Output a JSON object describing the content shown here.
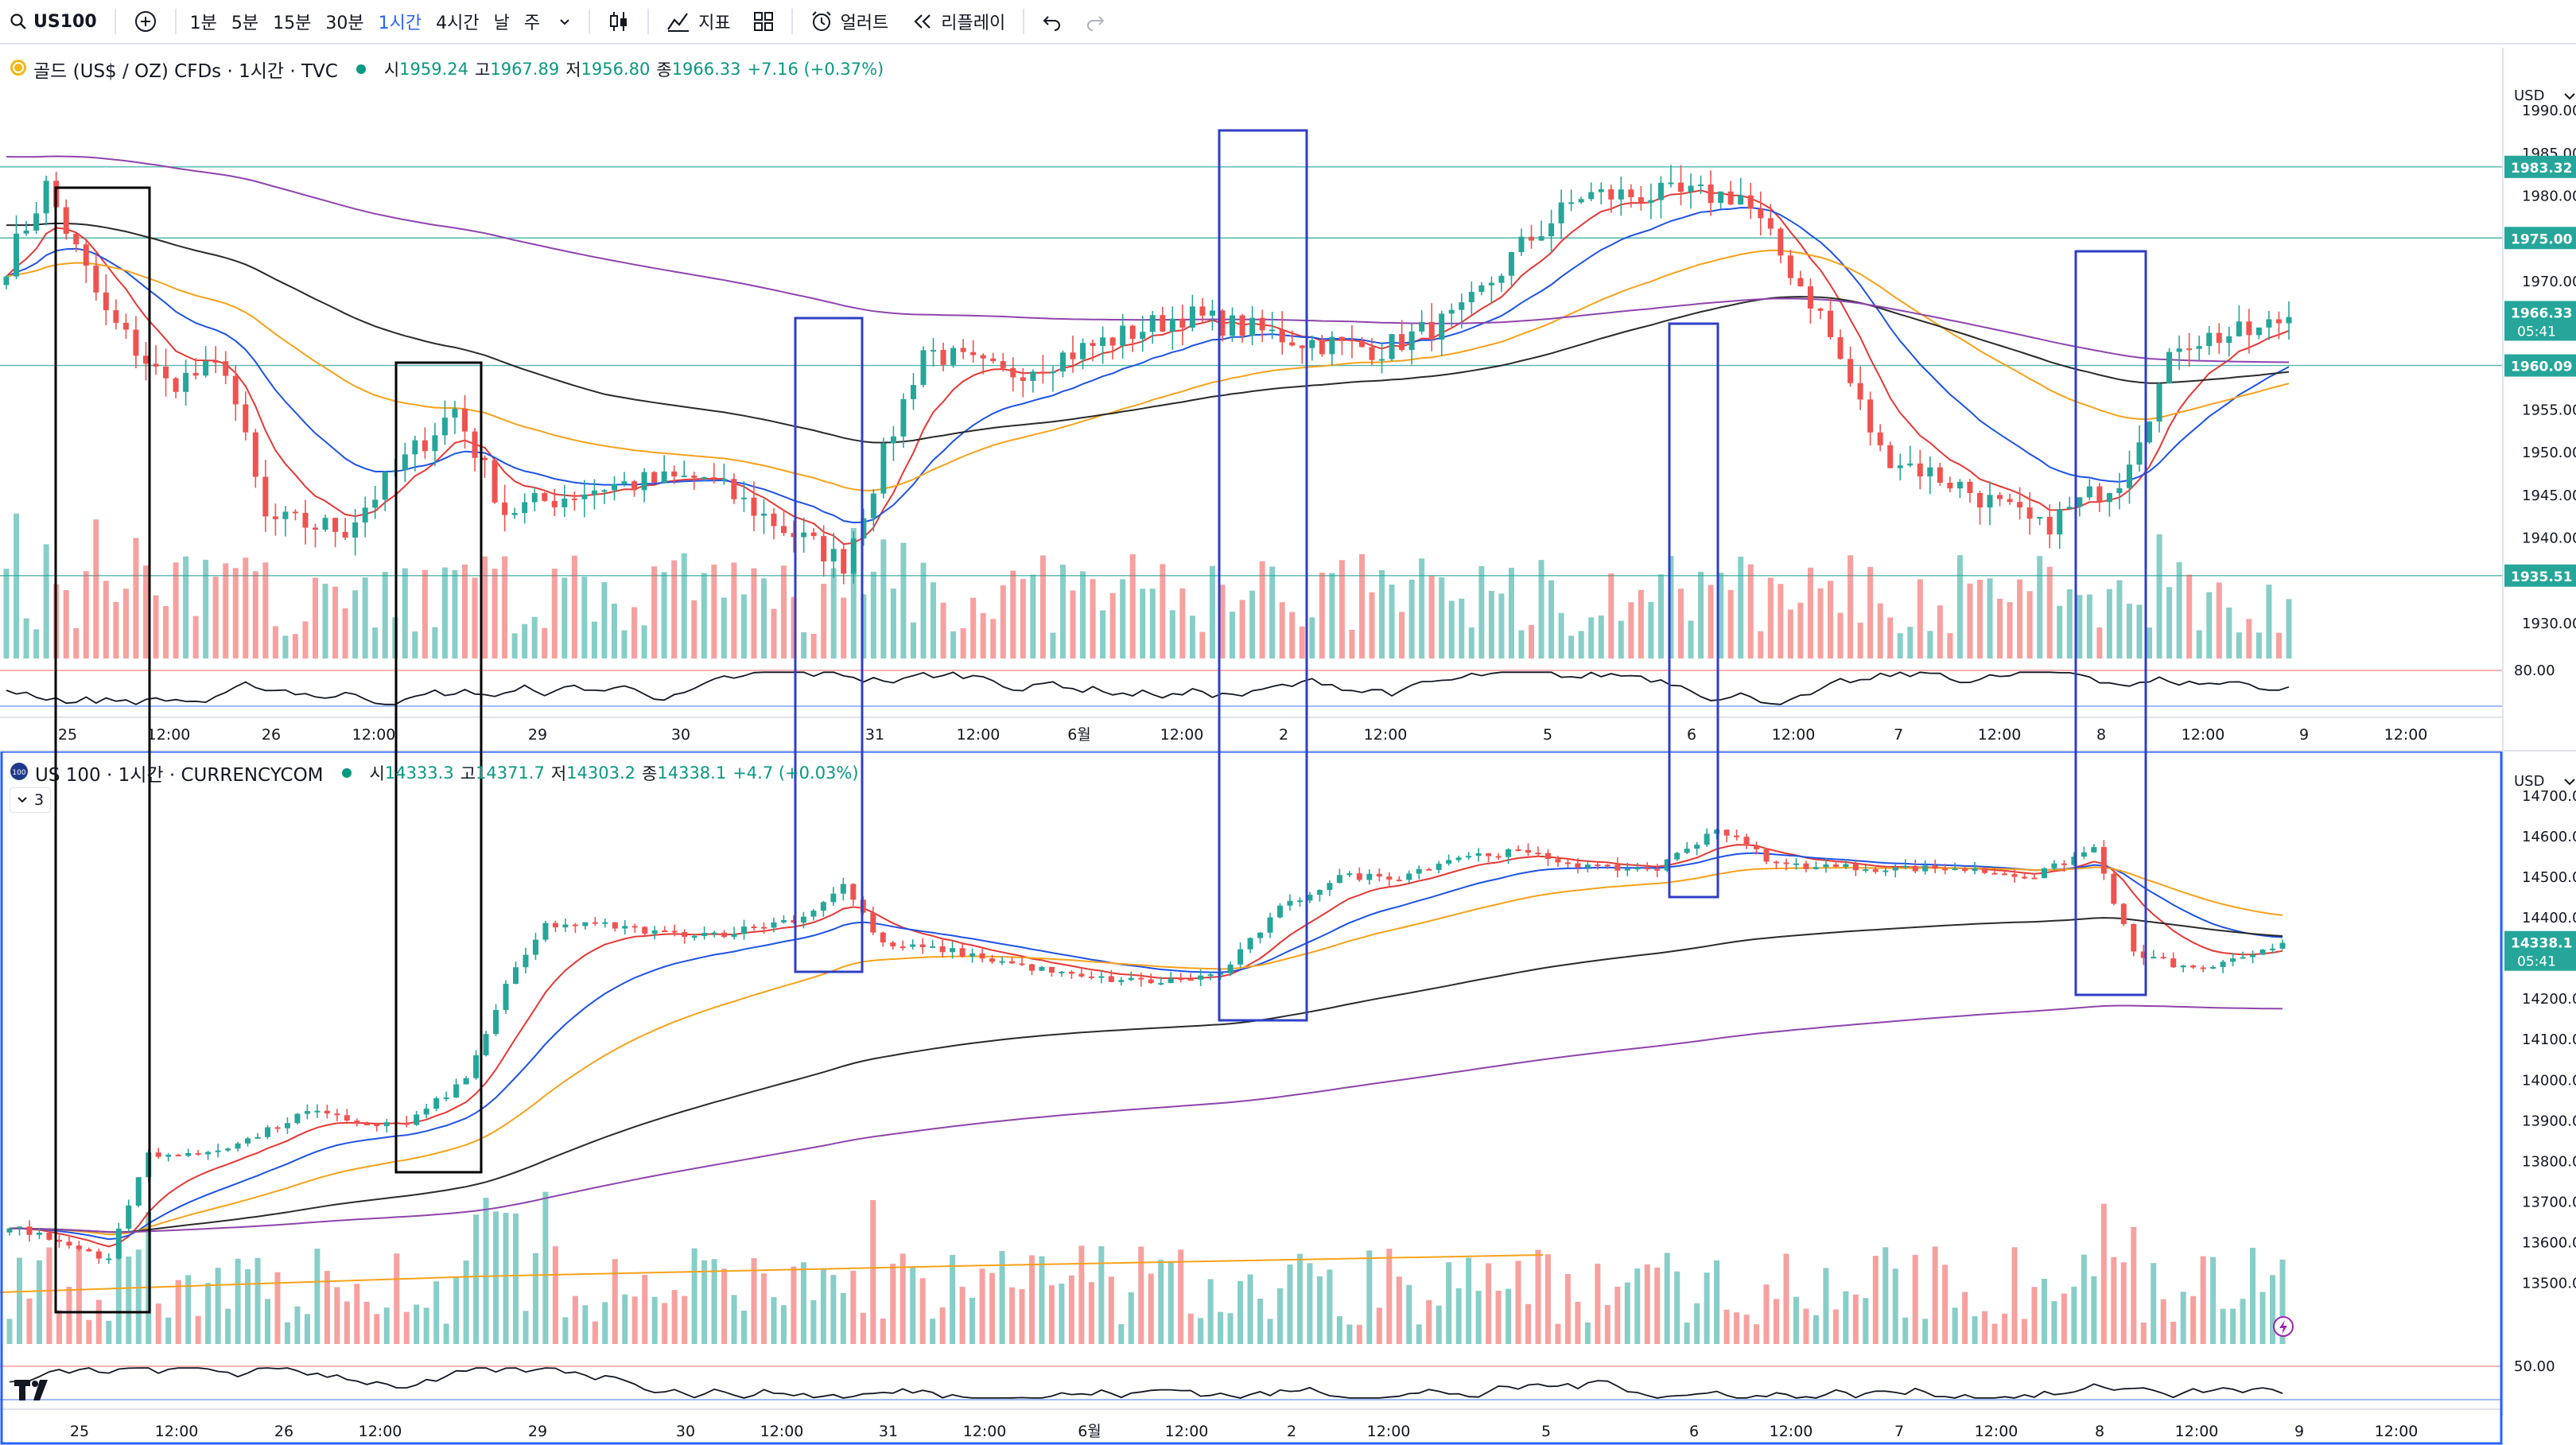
{
  "toolbar": {
    "symbol": "US100",
    "timeframes": [
      "1분",
      "5분",
      "15분",
      "30분",
      "1시간",
      "4시간",
      "날",
      "주"
    ],
    "active_timeframe": "1시간",
    "indicators_label": "지표",
    "alerts_label": "얼러트",
    "replay_label": "리플레이"
  },
  "pane1": {
    "legend": {
      "title": "골드 (US$ / OZ) CFDs · 1시간 · TVC",
      "o_label": "시",
      "o": "1959.24",
      "h_label": "고",
      "h": "1967.89",
      "l_label": "저",
      "l": "1956.80",
      "c_label": "종",
      "c": "1966.33",
      "change": "+7.16 (+0.37%)"
    },
    "currency": "USD",
    "price_ticks": [
      "1990.00",
      "1985.00",
      "1980.00",
      "1975.00",
      "1970.00",
      "1965.00",
      "1960.00",
      "1955.00",
      "1950.00",
      "1945.00",
      "1940.00",
      "1935.00",
      "1930.00"
    ],
    "tags": [
      {
        "label": "1983.32",
        "price": 1983.32,
        "color": "#26a69a"
      },
      {
        "label": "1975.00",
        "price": 1975.0,
        "color": "#26a69a"
      },
      {
        "label": "1966.33",
        "price": 1966.33,
        "color": "#26a69a",
        "sub": "05:41"
      },
      {
        "label": "1960.09",
        "price": 1960.09,
        "color": "#26a69a"
      },
      {
        "label": "1935.51",
        "price": 1935.51,
        "color": "#26a69a"
      }
    ],
    "osc_label": "80.00",
    "time_labels": [
      "25",
      "12:00",
      "26",
      "12:00",
      "29",
      "30",
      "31",
      "12:00",
      "6월",
      "12:00",
      "2",
      "12:00",
      "5",
      "6",
      "12:00",
      "7",
      "12:00",
      "8",
      "12:00",
      "9",
      "12:00"
    ]
  },
  "pane2": {
    "legend": {
      "title": "US 100 · 1시간 · CURRENCYCOM",
      "o_label": "시",
      "o": "14333.3",
      "h_label": "고",
      "h": "14371.7",
      "l_label": "저",
      "l": "14303.2",
      "c_label": "종",
      "c": "14338.1",
      "change": "+4.7 (+0.03%)"
    },
    "badge": "100",
    "collapse_count": "3",
    "currency": "USD",
    "price_ticks": [
      "14700.0",
      "14600.0",
      "14500.0",
      "14400.0",
      "14300.0",
      "14200.0",
      "14100.0",
      "14000.0",
      "13900.0",
      "13800.0",
      "13700.0",
      "13600.0",
      "13500.0"
    ],
    "tags": [
      {
        "label": "14338.1",
        "price": 14338.1,
        "color": "#26a69a",
        "sub": "05:41"
      }
    ],
    "osc_label": "50.00",
    "time_labels": [
      "25",
      "12:00",
      "26",
      "12:00",
      "29",
      "30",
      "12:00",
      "31",
      "12:00",
      "6월",
      "12:00",
      "2",
      "12:00",
      "5",
      "6",
      "12:00",
      "7",
      "12:00",
      "8",
      "12:00",
      "9",
      "12:00"
    ]
  },
  "colors": {
    "up": "#26a69a",
    "down": "#ef5350",
    "ema_red": "#e53935",
    "ema_blue": "#1e53e5",
    "ema_orange": "#f7a21b",
    "ema_black": "#2b2b2b",
    "ema_purple": "#8e44ad",
    "box_black": "#000000",
    "box_blue": "#2f3fc4"
  }
}
